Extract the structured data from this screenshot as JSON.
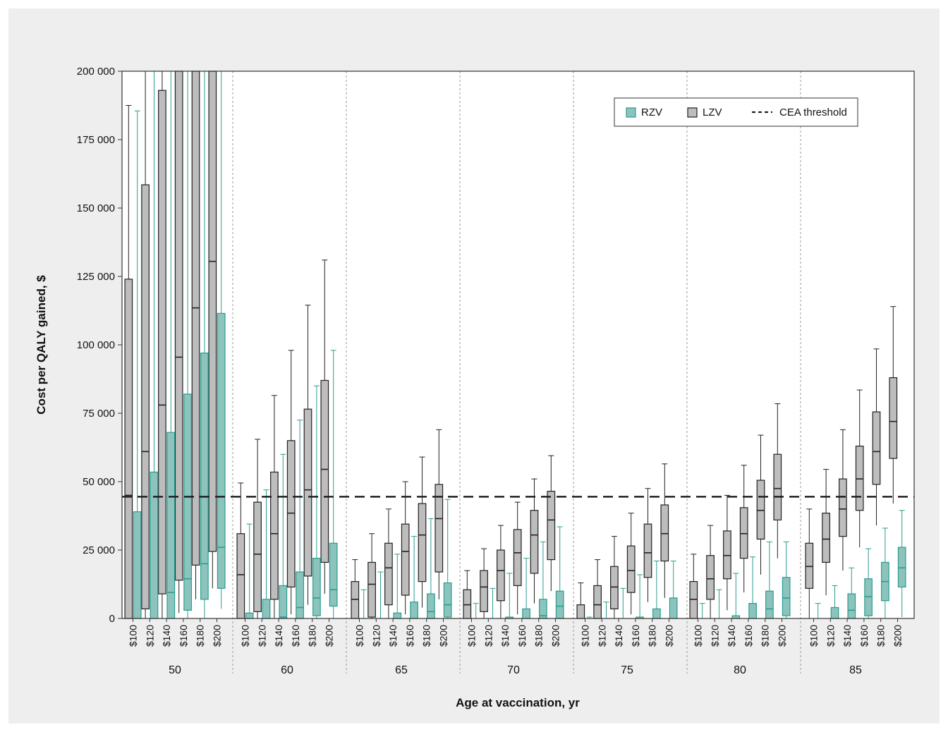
{
  "chart_data": {
    "type": "box",
    "xlabel": "Age at vaccination, yr",
    "ylabel": "Cost per QALY gained, $",
    "ylim": [
      0,
      200000
    ],
    "yticks": [
      0,
      25000,
      50000,
      75000,
      100000,
      125000,
      150000,
      175000,
      200000
    ],
    "ytick_labels": [
      "0",
      "25 000",
      "50 000",
      "75 000",
      "100 000",
      "125 000",
      "150 000",
      "175 000",
      "200 000"
    ],
    "groups": [
      "50",
      "60",
      "65",
      "70",
      "75",
      "80",
      "85"
    ],
    "prices": [
      "$100",
      "$120",
      "$140",
      "$160",
      "$180",
      "$200"
    ],
    "threshold": 44500,
    "legend": {
      "position": "top-right",
      "items": [
        {
          "label": "RZV",
          "key": "RZV",
          "color": "#8cc4bd",
          "stroke": "#2a9d8f"
        },
        {
          "label": "LZV",
          "key": "LZV",
          "color": "#bdbdbd",
          "stroke": "#222222"
        },
        {
          "label": "CEA threshold",
          "key": "threshold",
          "color": "#222222"
        }
      ]
    },
    "series": [
      {
        "name": "LZV",
        "groups": [
          [
            [
              0,
              0,
              45000,
              124000,
              187500
            ],
            [
              0,
              3500,
              61000,
              158500,
              250000
            ],
            [
              0,
              9000,
              78000,
              193000,
              260000
            ],
            [
              2000,
              14000,
              95500,
              230000,
              300000
            ],
            [
              7000,
              19500,
              113500,
              240000,
              300000
            ],
            [
              11000,
              24500,
              130500,
              250000,
              300000
            ]
          ],
          [
            [
              0,
              0,
              16000,
              31000,
              49500
            ],
            [
              0,
              2500,
              23500,
              42500,
              65500
            ],
            [
              0,
              7000,
              31000,
              53500,
              81500
            ],
            [
              1500,
              11500,
              38500,
              65000,
              98000
            ],
            [
              5000,
              15500,
              47000,
              76500,
              114500
            ],
            [
              9000,
              20500,
              54500,
              87000,
              131000
            ]
          ],
          [
            [
              0,
              0,
              7000,
              13500,
              21500
            ],
            [
              0,
              500,
              12500,
              20500,
              31000
            ],
            [
              0,
              5000,
              18500,
              27500,
              40000
            ],
            [
              1500,
              8500,
              24500,
              34500,
              50000
            ],
            [
              4000,
              13500,
              30500,
              42000,
              59000
            ],
            [
              7000,
              17000,
              36500,
              49000,
              69000
            ]
          ],
          [
            [
              0,
              0,
              5000,
              10500,
              17500
            ],
            [
              0,
              2500,
              11500,
              17500,
              25500
            ],
            [
              0,
              6500,
              17500,
              25000,
              34000
            ],
            [
              1500,
              12000,
              24000,
              32500,
              42500
            ],
            [
              5500,
              16500,
              30500,
              39500,
              51000
            ],
            [
              10000,
              21500,
              36000,
              46500,
              59500
            ]
          ],
          [
            [
              0,
              0,
              0,
              5000,
              13000
            ],
            [
              0,
              0,
              5000,
              12000,
              21500
            ],
            [
              0,
              3500,
              11500,
              19000,
              30000
            ],
            [
              1500,
              9500,
              17500,
              26500,
              38500
            ],
            [
              6000,
              15000,
              24000,
              34500,
              47500
            ],
            [
              7500,
              21000,
              31000,
              41500,
              56500
            ]
          ],
          [
            [
              0,
              0,
              7000,
              13500,
              23500
            ],
            [
              0,
              7000,
              14500,
              23000,
              34000
            ],
            [
              3000,
              14500,
              23000,
              32000,
              45000
            ],
            [
              9500,
              22000,
              31000,
              40500,
              56000
            ],
            [
              16000,
              29000,
              39500,
              50500,
              67000
            ],
            [
              22000,
              36000,
              47500,
              60000,
              78500
            ]
          ],
          [
            [
              0,
              11000,
              19000,
              27500,
              40000
            ],
            [
              8500,
              20500,
              29000,
              38500,
              54500
            ],
            [
              17500,
              30000,
              40000,
              51000,
              69000
            ],
            [
              26000,
              39500,
              51000,
              63000,
              83500
            ],
            [
              34000,
              49000,
              61000,
              75500,
              98500
            ],
            [
              42000,
              58500,
              72000,
              88000,
              114000
            ]
          ]
        ]
      },
      {
        "name": "RZV",
        "groups": [
          [
            [
              0,
              0,
              0,
              39000,
              185500
            ],
            [
              0,
              0,
              0,
              53500,
              200000
            ],
            [
              0,
              0,
              9500,
              68000,
              200000
            ],
            [
              0,
              3000,
              14500,
              82000,
              200000
            ],
            [
              0,
              7000,
              20000,
              97000,
              200000
            ],
            [
              3500,
              11000,
              26000,
              111500,
              200000
            ]
          ],
          [
            [
              0,
              0,
              0,
              2000,
              34500
            ],
            [
              0,
              0,
              0,
              7000,
              47000
            ],
            [
              0,
              0,
              500,
              12000,
              60000
            ],
            [
              0,
              0,
              4000,
              17000,
              72500
            ],
            [
              0,
              1000,
              7500,
              22000,
              85000
            ],
            [
              0,
              4500,
              10500,
              27500,
              98000
            ]
          ],
          [
            [
              0,
              0,
              0,
              0,
              10500
            ],
            [
              0,
              0,
              0,
              0,
              17000
            ],
            [
              0,
              0,
              0,
              2000,
              23500
            ],
            [
              0,
              0,
              0,
              6000,
              30000
            ],
            [
              0,
              0,
              2500,
              9000,
              36500
            ],
            [
              0,
              500,
              5000,
              13000,
              43500
            ]
          ],
          [
            [
              0,
              0,
              0,
              0,
              5500
            ],
            [
              0,
              0,
              0,
              0,
              11000
            ],
            [
              0,
              0,
              0,
              500,
              16500
            ],
            [
              0,
              0,
              0,
              3500,
              22000
            ],
            [
              0,
              0,
              1000,
              7000,
              28000
            ],
            [
              0,
              0,
              4500,
              10000,
              33500
            ]
          ],
          [
            [
              0,
              0,
              0,
              0,
              500
            ],
            [
              0,
              0,
              0,
              0,
              6000
            ],
            [
              0,
              0,
              0,
              0,
              11000
            ],
            [
              0,
              0,
              0,
              500,
              16000
            ],
            [
              0,
              0,
              0,
              3500,
              21000
            ],
            [
              0,
              0,
              0,
              7500,
              21000
            ]
          ],
          [
            [
              0,
              0,
              0,
              0,
              5500
            ],
            [
              0,
              0,
              0,
              0,
              10500
            ],
            [
              0,
              0,
              0,
              1000,
              16500
            ],
            [
              0,
              0,
              0,
              5500,
              22500
            ],
            [
              0,
              0,
              3500,
              10000,
              28000
            ],
            [
              0,
              1000,
              7500,
              15000,
              28000
            ]
          ],
          [
            [
              0,
              0,
              0,
              0,
              5500
            ],
            [
              0,
              0,
              0,
              4000,
              12000
            ],
            [
              0,
              0,
              3000,
              9000,
              18500
            ],
            [
              0,
              1000,
              8000,
              14500,
              25500
            ],
            [
              0,
              6500,
              13500,
              20500,
              33000
            ],
            [
              500,
              11500,
              18500,
              26000,
              39500
            ]
          ]
        ]
      }
    ]
  }
}
